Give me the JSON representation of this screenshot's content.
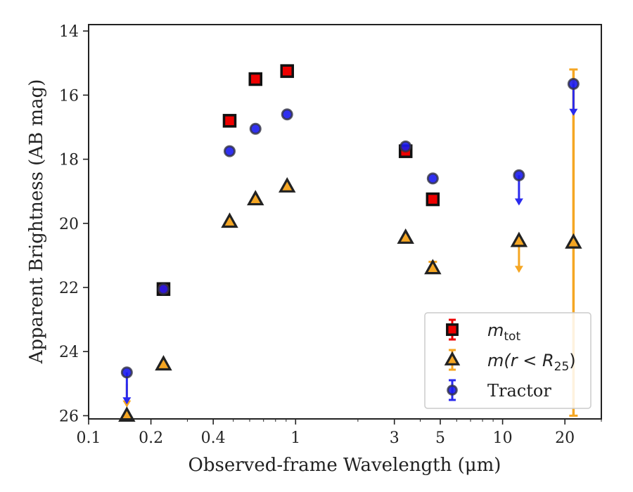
{
  "chart_data": {
    "type": "scatter",
    "xlabel": "Observed-frame Wavelength (μm)",
    "ylabel": "Apparent Brightness (AB mag)",
    "xscale": "log",
    "xlim": [
      0.1,
      30
    ],
    "ylim": [
      26.1,
      13.8
    ],
    "y_inverted": true,
    "xticks": [
      {
        "value": 0.1,
        "label": "0.1"
      },
      {
        "value": 0.2,
        "label": "0.2"
      },
      {
        "value": 0.4,
        "label": "0.4"
      },
      {
        "value": 1,
        "label": "1"
      },
      {
        "value": 3,
        "label": "3"
      },
      {
        "value": 5,
        "label": "5"
      },
      {
        "value": 10,
        "label": "10"
      },
      {
        "value": 20,
        "label": "20"
      }
    ],
    "yticks": [
      {
        "value": 14,
        "label": "14"
      },
      {
        "value": 16,
        "label": "16"
      },
      {
        "value": 18,
        "label": "18"
      },
      {
        "value": 20,
        "label": "20"
      },
      {
        "value": 22,
        "label": "22"
      },
      {
        "value": 24,
        "label": "24"
      },
      {
        "value": 26,
        "label": "26"
      }
    ],
    "legend_position": "lower-right",
    "series": [
      {
        "name": "m_tot",
        "legend_main": "m",
        "legend_sub": "tot",
        "marker": "square",
        "color": "#ee0000",
        "edge": "#111111",
        "errcolor": "#ee0000",
        "points": [
          {
            "x": 0.23,
            "y": 22.05
          },
          {
            "x": 0.48,
            "y": 16.8
          },
          {
            "x": 0.64,
            "y": 15.5
          },
          {
            "x": 0.91,
            "y": 15.25
          },
          {
            "x": 3.4,
            "y": 17.75
          },
          {
            "x": 4.6,
            "y": 19.25
          }
        ]
      },
      {
        "name": "m(r < R25)",
        "legend_main": "m(r < R",
        "legend_sub": "25",
        "legend_tail": ")",
        "marker": "triangle",
        "color": "#f5a623",
        "edge": "#222222",
        "errcolor": "#f5a623",
        "points": [
          {
            "x": 0.153,
            "y": 26.0
          },
          {
            "x": 0.23,
            "y": 24.4
          },
          {
            "x": 0.48,
            "y": 19.95
          },
          {
            "x": 0.64,
            "y": 19.25
          },
          {
            "x": 0.91,
            "y": 18.85
          },
          {
            "x": 3.4,
            "y": 20.45
          },
          {
            "x": 4.6,
            "y": 21.4
          },
          {
            "x": 12,
            "y": 20.55
          },
          {
            "x": 22,
            "y": 20.6
          }
        ],
        "upper_limits": [
          {
            "x": 0.153,
            "y_from": 25.0,
            "y_to": 25.7
          },
          {
            "x": 12,
            "y_from": 20.55,
            "y_to": 21.5
          }
        ],
        "error_bars": [
          {
            "x": 22,
            "y_low": 15.2,
            "y_high": 26.0
          },
          {
            "x": 4.6,
            "y_low": 21.2,
            "y_high": 21.5
          }
        ]
      },
      {
        "name": "Tractor",
        "legend_main": "Tractor",
        "marker": "circle",
        "color": "#1a1aee",
        "edge": "#333344",
        "errcolor": "#2a2aee",
        "points": [
          {
            "x": 0.153,
            "y": 24.65
          },
          {
            "x": 0.23,
            "y": 22.05
          },
          {
            "x": 0.48,
            "y": 17.75
          },
          {
            "x": 0.64,
            "y": 17.05
          },
          {
            "x": 0.91,
            "y": 16.6
          },
          {
            "x": 3.4,
            "y": 17.6
          },
          {
            "x": 4.6,
            "y": 18.6
          },
          {
            "x": 12,
            "y": 18.5
          },
          {
            "x": 22,
            "y": 15.65
          }
        ],
        "upper_limits": [
          {
            "x": 0.153,
            "y_from": 24.65,
            "y_to": 25.6
          },
          {
            "x": 12,
            "y_from": 18.5,
            "y_to": 19.4
          },
          {
            "x": 22,
            "y_from": 15.65,
            "y_to": 16.6
          }
        ]
      }
    ]
  }
}
